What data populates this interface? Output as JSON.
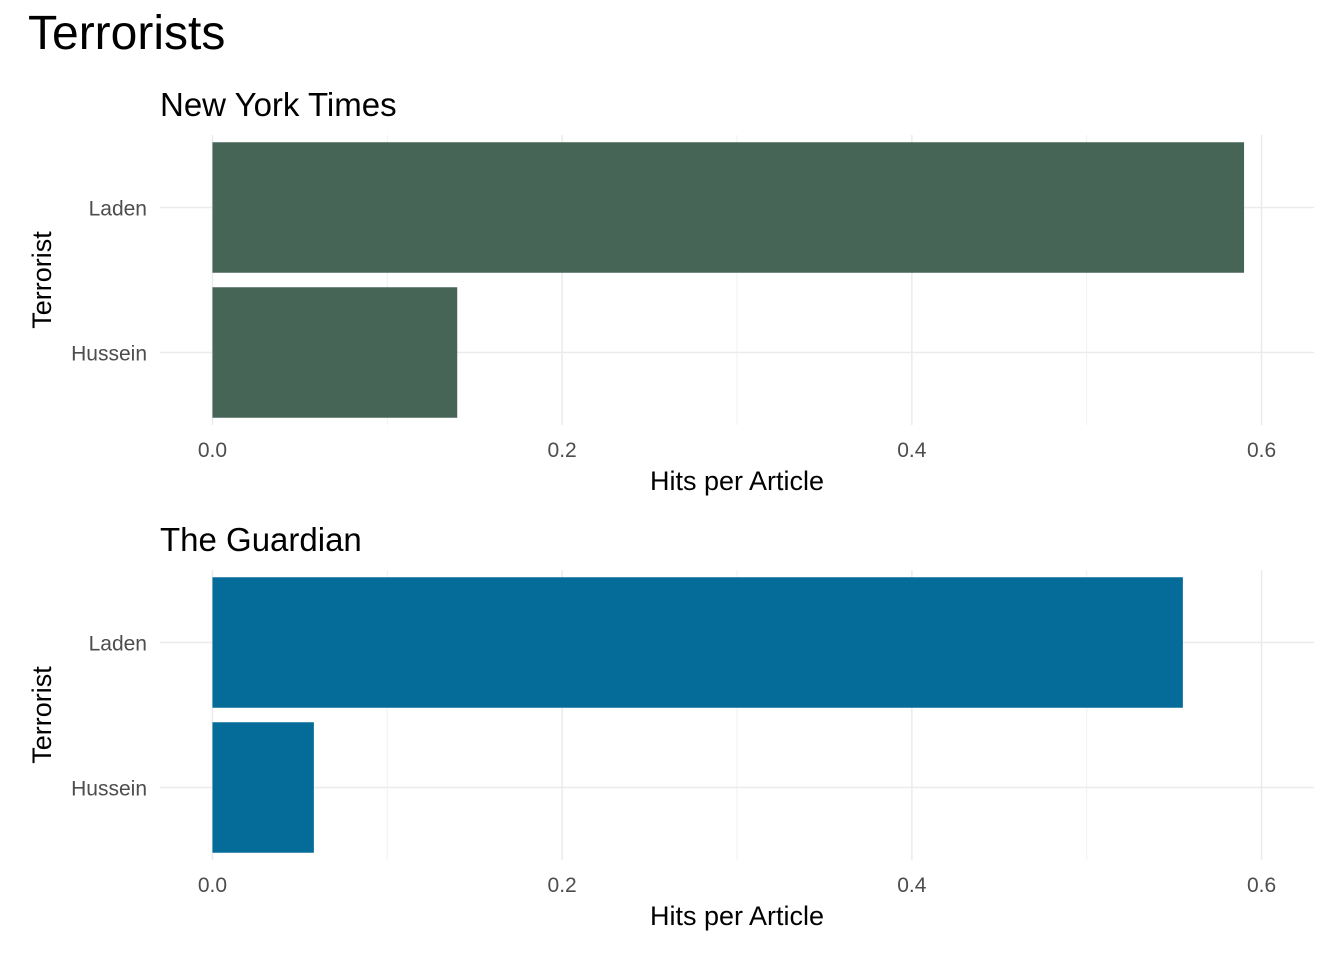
{
  "title": "Terrorists",
  "chart_data": [
    {
      "type": "bar",
      "orientation": "horizontal",
      "title": "New York Times",
      "xlabel": "Hits per Article",
      "ylabel": "Terrorist",
      "categories": [
        "Laden",
        "Hussein"
      ],
      "values": [
        0.59,
        0.14
      ],
      "xlim": [
        -0.03,
        0.63
      ],
      "xticks": [
        0.0,
        0.2,
        0.4,
        0.6
      ],
      "xtick_labels": [
        "0.0",
        "0.2",
        "0.4",
        "0.6"
      ],
      "grid": true,
      "color": "#466557"
    },
    {
      "type": "bar",
      "orientation": "horizontal",
      "title": "The Guardian",
      "xlabel": "Hits per Article",
      "ylabel": "Terrorist",
      "categories": [
        "Laden",
        "Hussein"
      ],
      "values": [
        0.555,
        0.058
      ],
      "xlim": [
        -0.03,
        0.63
      ],
      "xticks": [
        0.0,
        0.2,
        0.4,
        0.6
      ],
      "xtick_labels": [
        "0.0",
        "0.2",
        "0.4",
        "0.6"
      ],
      "grid": true,
      "color": "#056c9a"
    }
  ]
}
